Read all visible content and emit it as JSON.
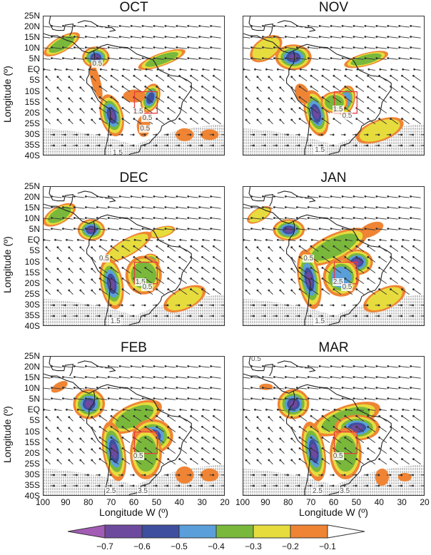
{
  "panels": [
    {
      "title": "OCT",
      "contour_labels": [
        "0.5",
        "1.5",
        "0.5",
        "0.5",
        "1.5"
      ]
    },
    {
      "title": "NOV",
      "contour_labels": [
        "1.5",
        "0.5",
        "1.5"
      ]
    },
    {
      "title": "DEC",
      "contour_labels": [
        "0.5",
        "1.5",
        "0.5",
        "1.5"
      ]
    },
    {
      "title": "JAN",
      "contour_labels": [
        "0.5",
        "2.5",
        "0.5",
        "1.5"
      ]
    },
    {
      "title": "FEB",
      "contour_labels": [
        "0.5",
        "2.5",
        "3.5"
      ]
    },
    {
      "title": "MAR",
      "contour_labels": [
        "0.5",
        "0.5",
        "2.5",
        "3.5"
      ]
    }
  ],
  "y_axis": {
    "title": "Longitude (º)",
    "ticks": [
      "25N",
      "20N",
      "15N",
      "10N",
      "5N",
      "EQ",
      "5S",
      "10S",
      "15S",
      "20S",
      "25S",
      "30S",
      "35S",
      "40S"
    ]
  },
  "x_axis": {
    "title": "Longitude W (º)",
    "ticks": [
      "100",
      "90",
      "80",
      "70",
      "60",
      "50",
      "40",
      "30",
      "20"
    ]
  },
  "colorbar": {
    "labels": [
      "−0.7",
      "−0.6",
      "−0.5",
      "−0.4",
      "−0.3",
      "−0.2",
      "−0.1"
    ],
    "colors": [
      "#a35cb6",
      "#6e4a9e",
      "#3d4f9e",
      "#5a9fd9",
      "#79b83b",
      "#e6dc3d",
      "#ef8434",
      "#ffffff"
    ]
  },
  "colors": {
    "box": "#e83a3a",
    "coast": "#222222",
    "vector": "#333333",
    "contour": "#777777"
  }
}
